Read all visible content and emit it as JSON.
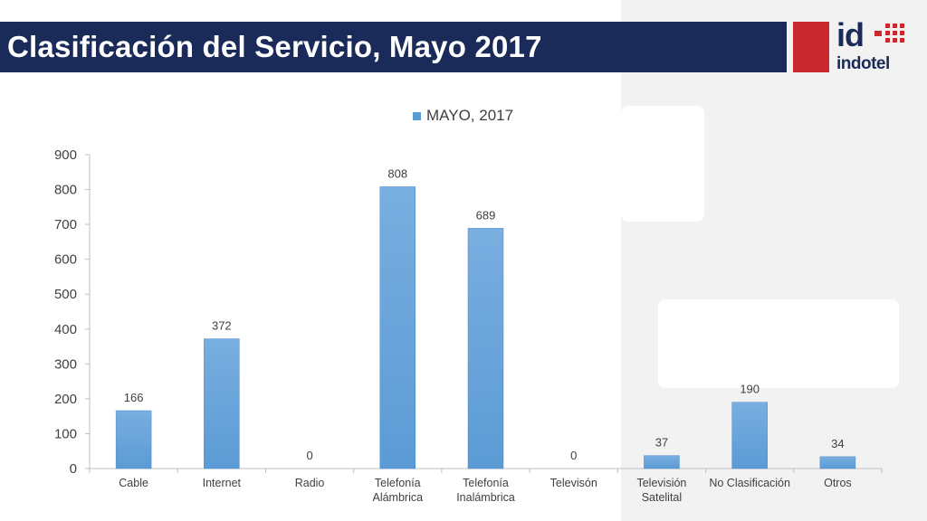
{
  "header": {
    "title": "Clasificación del Servicio, Mayo 2017",
    "title_bg": "#1b2b59",
    "accent": "#c8282e"
  },
  "logo": {
    "mark": "id",
    "wordmark": "indotel"
  },
  "chart_data": {
    "type": "bar",
    "categories": [
      "Cable",
      "Internet",
      "Radio",
      "Telefonía\nAlámbrica",
      "Telefonía\nInalámbrica",
      "Televisón",
      "Televisión\nSatelital",
      "No Clasificación",
      "Otros"
    ],
    "series": [
      {
        "name": "MAYO, 2017",
        "values": [
          166,
          372,
          0,
          808,
          689,
          0,
          37,
          190,
          34
        ],
        "color": "#5b9bd5"
      }
    ],
    "data_labels": [
      "166",
      "372",
      "0",
      "808",
      "689",
      "0",
      "37",
      "190",
      "34"
    ],
    "ylim": [
      0,
      900
    ],
    "yticks": [
      0,
      100,
      200,
      300,
      400,
      500,
      600,
      700,
      800,
      900
    ],
    "legend_position": "top",
    "grid": false
  }
}
